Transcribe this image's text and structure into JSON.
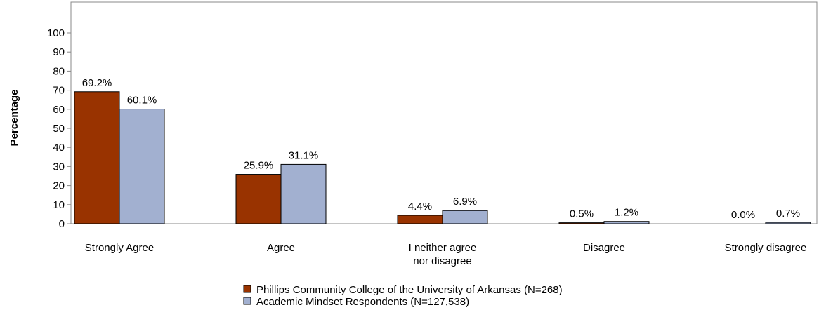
{
  "chart_data": {
    "type": "bar",
    "ylabel": "Percentage",
    "ylim": [
      0,
      100
    ],
    "yticks": [
      0,
      10,
      20,
      30,
      40,
      50,
      60,
      70,
      80,
      90,
      100
    ],
    "grid": false,
    "legend_placement": "bottom-center",
    "categories": [
      [
        "Strongly Agree"
      ],
      [
        "Agree"
      ],
      [
        "I neither agree",
        "nor disagree"
      ],
      [
        "Disagree"
      ],
      [
        "Strongly disagree"
      ]
    ],
    "series": [
      {
        "name": "Phillips Community College of the University of Arkansas (N=268)",
        "color": "#993300",
        "values": [
          69.2,
          25.9,
          4.4,
          0.5,
          0.0
        ],
        "labels": [
          "69.2%",
          "25.9%",
          "4.4%",
          "0.5%",
          "0.0%"
        ]
      },
      {
        "name": "Academic Mindset Respondents (N=127,538)",
        "color": "#a2b0d0",
        "values": [
          60.1,
          31.1,
          6.9,
          1.2,
          0.7
        ],
        "labels": [
          "60.1%",
          "31.1%",
          "6.9%",
          "1.2%",
          "0.7%"
        ]
      }
    ]
  }
}
